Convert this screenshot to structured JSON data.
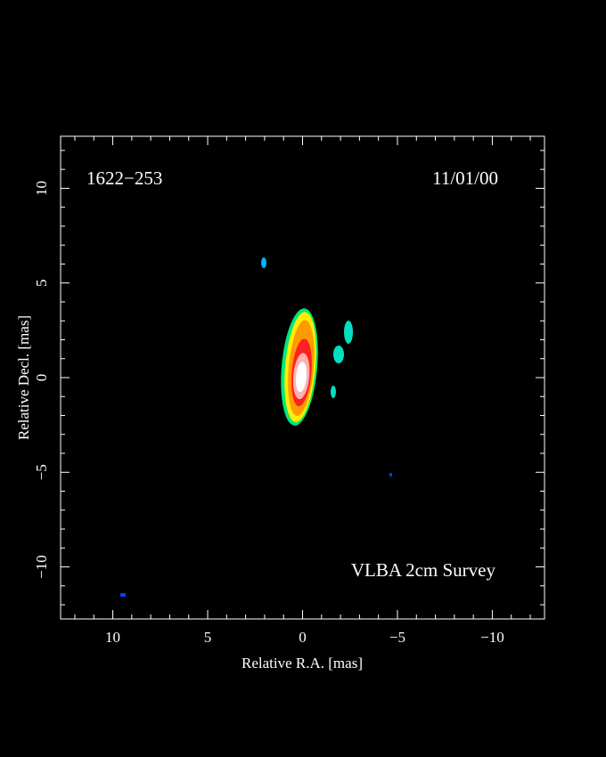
{
  "chart_data": {
    "type": "image",
    "annotations": [
      "1622−253",
      "11/01/00",
      "VLBA 2cm Survey"
    ],
    "xlabel": "Relative R.A. [mas]",
    "ylabel": "Relative Decl. [mas]",
    "xlim": [
      12.75,
      -12.75
    ],
    "ylim": [
      -12.75,
      12.75
    ],
    "xticks": [
      10,
      5,
      0,
      {
        "value": -5,
        "label": "−5"
      },
      {
        "value": -10,
        "label": "−10"
      }
    ],
    "yticks": [
      {
        "value": -10,
        "label": "−10"
      },
      {
        "value": -5,
        "label": "−5"
      },
      0,
      5,
      10
    ],
    "xminorticks": [
      12,
      11,
      9,
      8,
      7,
      6,
      4,
      3,
      2,
      1,
      -1,
      -2,
      -3,
      -4,
      -6,
      -7,
      -8,
      -9,
      -11,
      -12
    ],
    "yminorticks": [
      -12,
      -11,
      -9,
      -8,
      -7,
      -6,
      -4,
      -3,
      -2,
      -1,
      1,
      2,
      3,
      4,
      6,
      7,
      8,
      9,
      11,
      12
    ]
  }
}
